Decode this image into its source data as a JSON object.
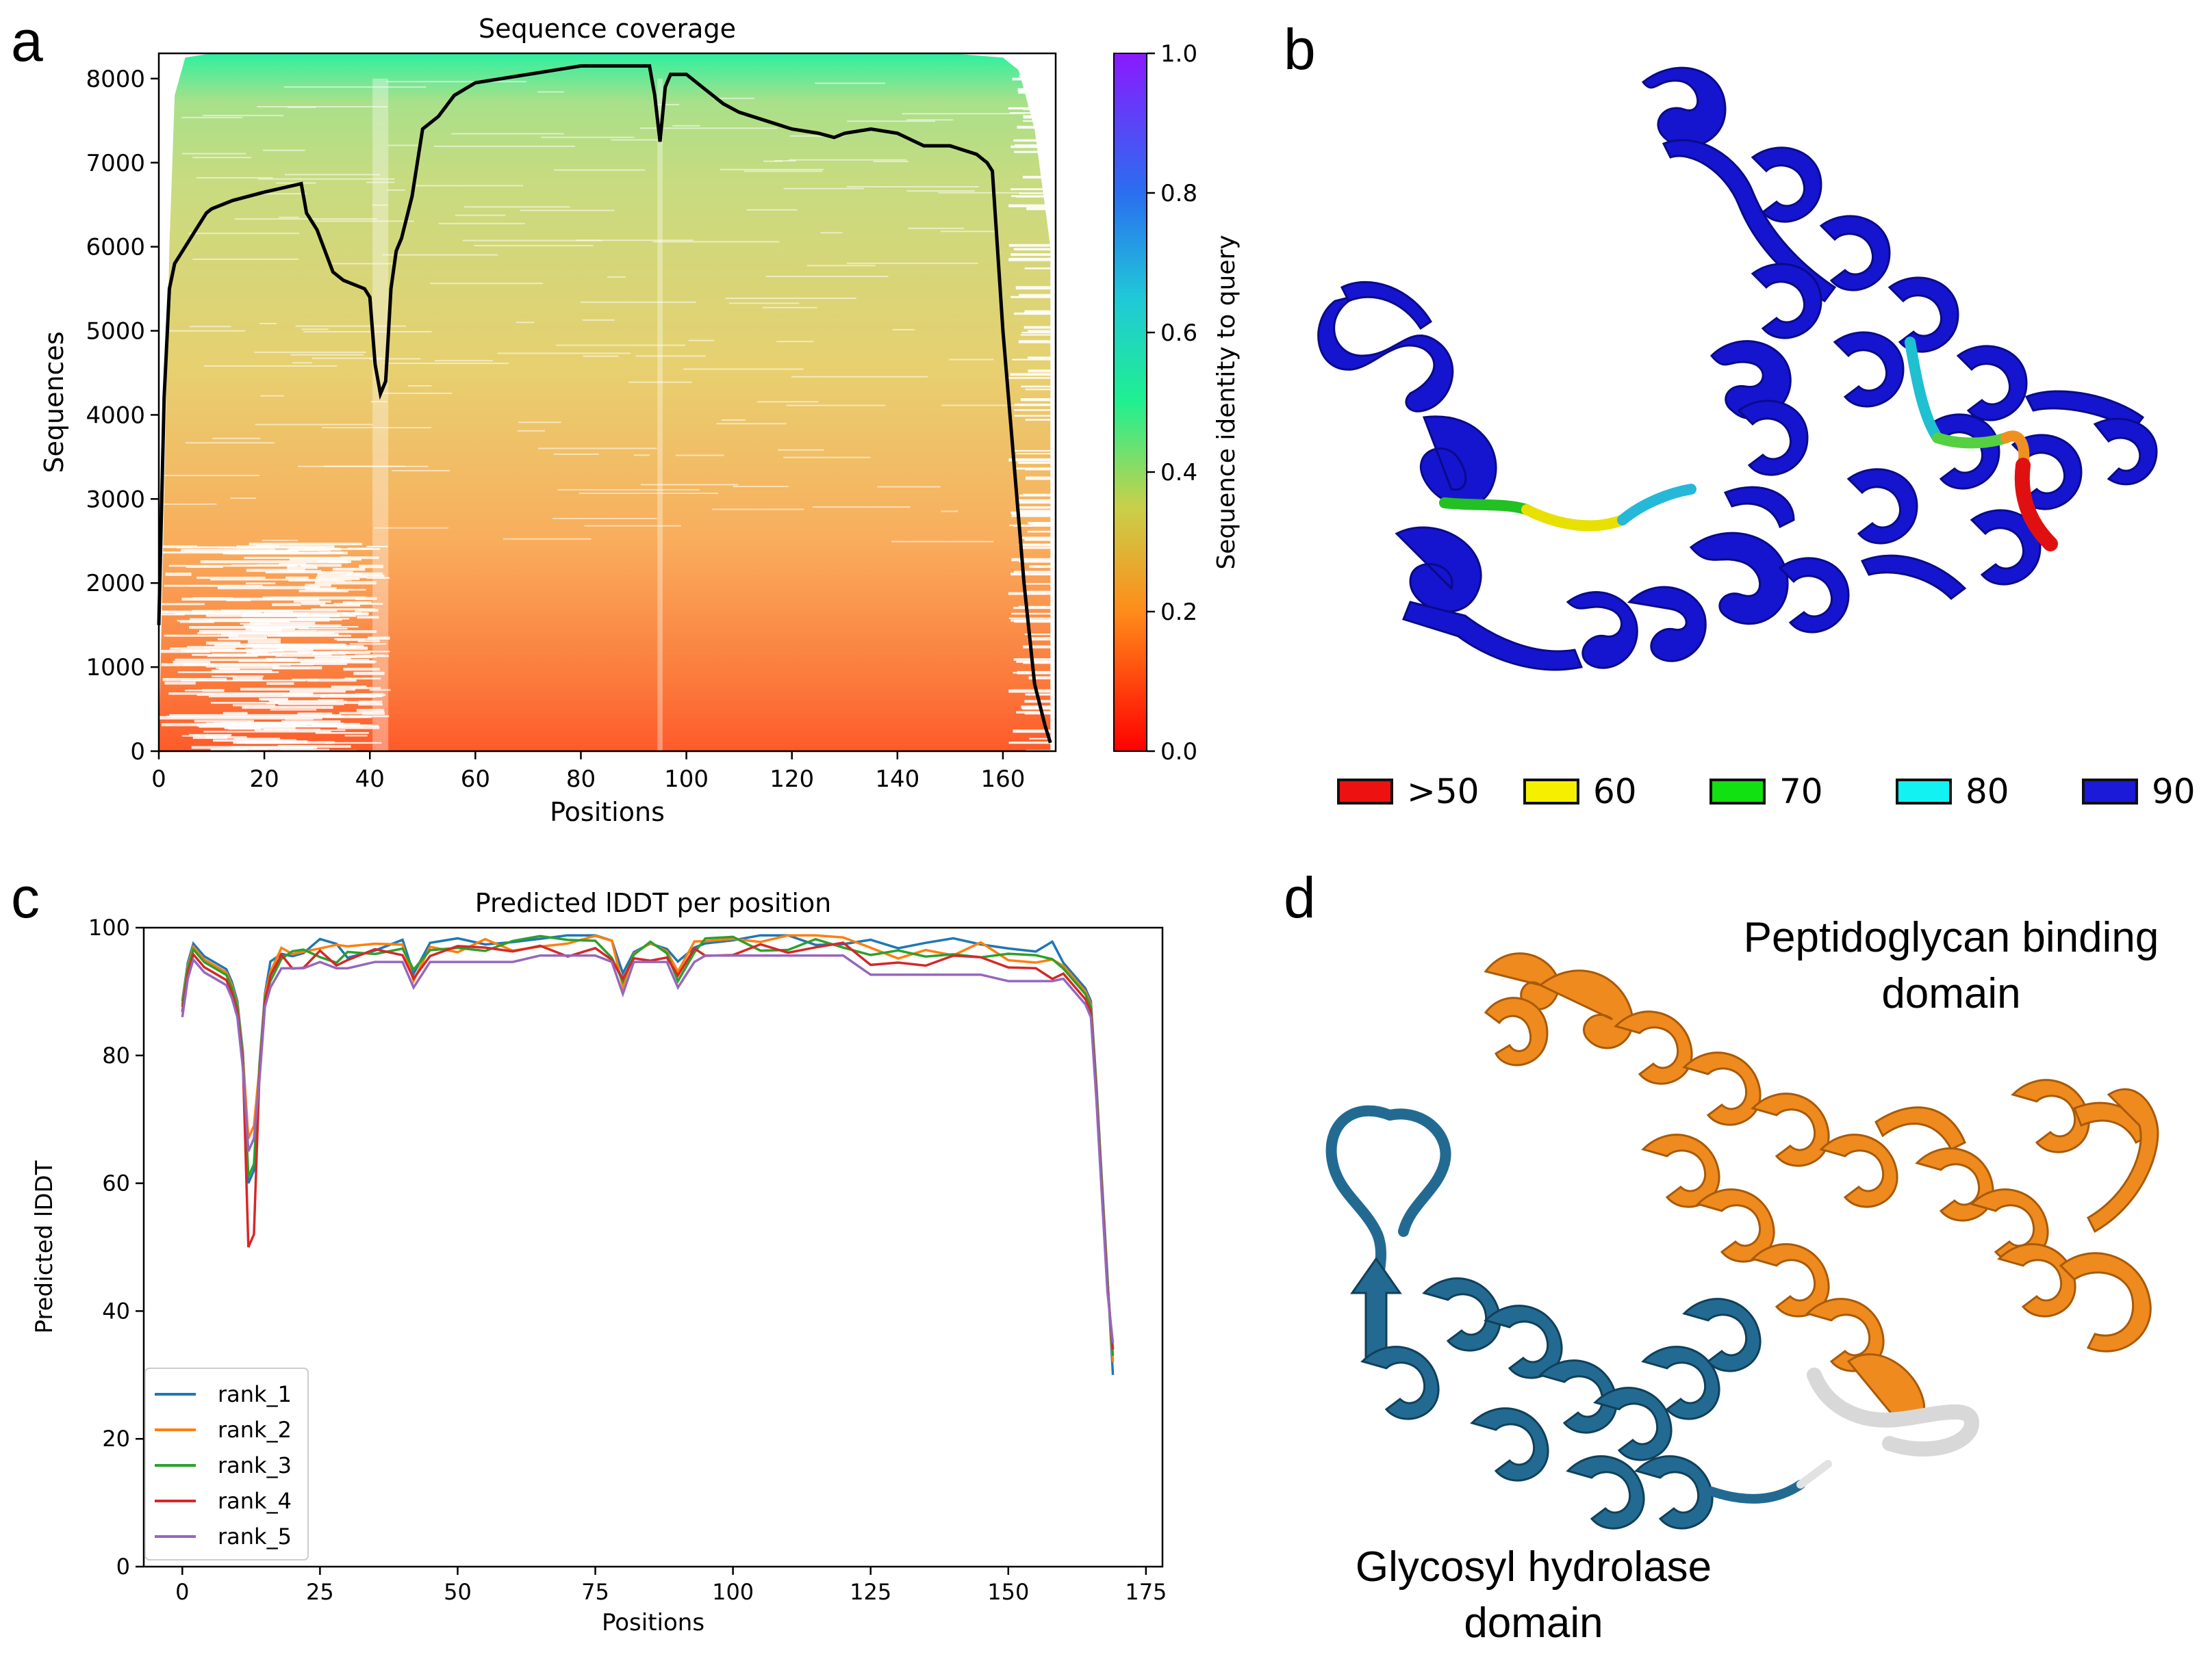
{
  "panels": {
    "a": {
      "letter": "a"
    },
    "b": {
      "letter": "b"
    },
    "c": {
      "letter": "c"
    },
    "d": {
      "letter": "d"
    }
  },
  "chart_data": [
    {
      "id": "coverage",
      "type": "heatmap",
      "title": "Sequence coverage",
      "xlabel": "Positions",
      "ylabel": "Sequences",
      "xlim": [
        0,
        170
      ],
      "ylim": [
        0,
        8300
      ],
      "xticks": [
        0,
        20,
        40,
        60,
        80,
        100,
        120,
        140,
        160
      ],
      "yticks": [
        0,
        1000,
        2000,
        3000,
        4000,
        5000,
        6000,
        7000,
        8000
      ],
      "colorbar": {
        "label": "Sequence identity to query",
        "ticks": [
          "0.0",
          "0.2",
          "0.4",
          "0.6",
          "0.8",
          "1.0"
        ],
        "range": [
          0,
          1
        ]
      },
      "coverage_line": {
        "x": [
          0,
          1,
          2,
          3,
          5,
          7,
          9,
          10,
          14,
          20,
          27,
          28,
          30,
          33,
          35,
          37,
          39,
          40,
          41,
          42,
          43,
          44,
          45,
          46,
          48,
          50,
          53,
          56,
          60,
          65,
          70,
          75,
          80,
          85,
          90,
          93,
          94,
          95,
          96,
          97,
          100,
          103,
          107,
          110,
          115,
          120,
          125,
          128,
          130,
          135,
          140,
          145,
          150,
          155,
          157,
          158,
          160,
          162,
          164,
          166,
          168,
          169
        ],
        "y": [
          1500,
          4200,
          5500,
          5800,
          6000,
          6200,
          6400,
          6450,
          6550,
          6650,
          6750,
          6400,
          6200,
          5700,
          5600,
          5550,
          5500,
          5400,
          4600,
          4250,
          4400,
          5500,
          5950,
          6100,
          6600,
          7400,
          7550,
          7800,
          7950,
          8000,
          8050,
          8100,
          8150,
          8150,
          8150,
          8150,
          7800,
          7250,
          7900,
          8050,
          8050,
          7900,
          7700,
          7600,
          7500,
          7400,
          7350,
          7300,
          7350,
          7400,
          7350,
          7200,
          7200,
          7100,
          7000,
          6900,
          5000,
          3500,
          2000,
          800,
          300,
          100
        ]
      }
    },
    {
      "id": "plddt",
      "type": "line",
      "title": "Predicted lDDT per position",
      "xlabel": "Positions",
      "ylabel": "Predicted lDDT",
      "xlim": [
        -7,
        178
      ],
      "ylim": [
        0,
        100
      ],
      "xticks": [
        0,
        25,
        50,
        75,
        100,
        125,
        150,
        175
      ],
      "yticks": [
        0,
        20,
        40,
        60,
        80,
        100
      ],
      "legend_position": "lower-left",
      "base_profile": {
        "x": [
          0,
          1,
          2,
          4,
          6,
          8,
          9,
          10,
          11,
          12,
          13,
          14,
          15,
          16,
          18,
          20,
          22,
          25,
          28,
          30,
          35,
          40,
          42,
          45,
          50,
          55,
          60,
          65,
          70,
          75,
          78,
          80,
          82,
          85,
          88,
          90,
          93,
          95,
          100,
          105,
          110,
          115,
          120,
          125,
          130,
          135,
          140,
          145,
          150,
          155,
          158,
          160,
          162,
          164,
          165,
          166,
          167,
          168,
          169
        ],
        "y": [
          88,
          94,
          97,
          95,
          94,
          93,
          91,
          88,
          80,
          62,
          62,
          78,
          90,
          93,
          96,
          96,
          96,
          97,
          96,
          96,
          97,
          97,
          93,
          97,
          97,
          97,
          97,
          98,
          98,
          98,
          97,
          92,
          97,
          97,
          97,
          93,
          97,
          98,
          98,
          98,
          98,
          98,
          98,
          97,
          97,
          97,
          97,
          97,
          96,
          96,
          96,
          94,
          92,
          90,
          88,
          75,
          60,
          45,
          32
        ]
      },
      "series": [
        {
          "name": "rank_1",
          "color": "#1f77b4",
          "offset": 0.5,
          "dip": 60,
          "end": 30
        },
        {
          "name": "rank_2",
          "color": "#ff7f0e",
          "offset": 0.0,
          "dip": 67,
          "end": 32
        },
        {
          "name": "rank_3",
          "color": "#2ca02c",
          "offset": -0.4,
          "dip": 61,
          "end": 33
        },
        {
          "name": "rank_4",
          "color": "#d62728",
          "offset": -1.2,
          "dip": 50,
          "end": 34
        },
        {
          "name": "rank_5",
          "color": "#9467bd",
          "offset": -2.0,
          "dip": 65,
          "end": 35
        }
      ]
    }
  ],
  "plddt_legend": {
    "items": [
      {
        "label": ">50",
        "color": "#ee1111"
      },
      {
        "label": "60",
        "color": "#f4f000"
      },
      {
        "label": "70",
        "color": "#11e011"
      },
      {
        "label": "80",
        "color": "#12f2f2"
      },
      {
        "label": "90",
        "color": "#1a1ad8"
      }
    ]
  },
  "domains": {
    "peptidoglycan_line1": "Peptidoglycan binding",
    "peptidoglycan_line2": "domain",
    "glycosyl_line1": "Glycosyl hydrolase",
    "glycosyl_line2": "domain",
    "colors": {
      "peptidoglycan": "#ef8a1e",
      "glycosyl": "#236a92",
      "linker": "#d8d8d8"
    }
  }
}
